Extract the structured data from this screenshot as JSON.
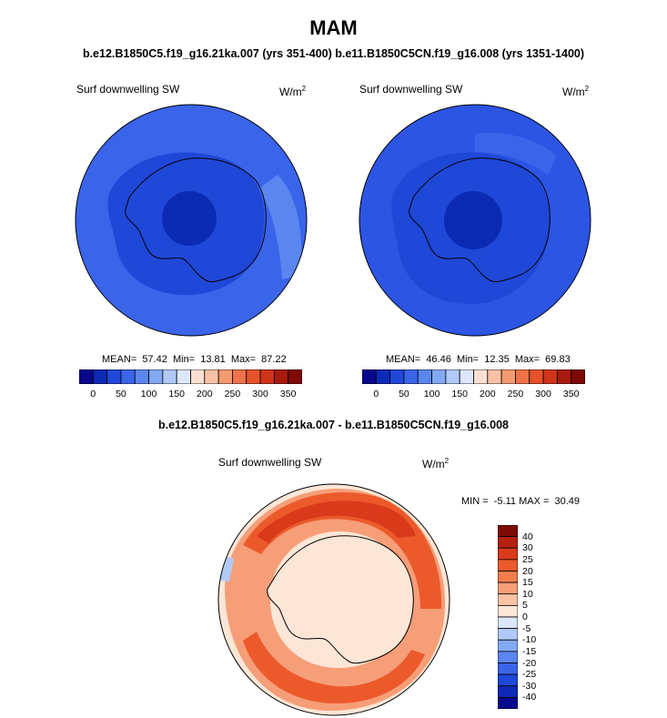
{
  "header": {
    "title": "MAM",
    "subtitle": "b.e12.B1850C5.f19_g16.21ka.007 (yrs 351-400) b.e11.B1850C5CN.f19_g16.008 (yrs 1351-1400)"
  },
  "panels": [
    {
      "label": "Surf downwelling SW",
      "unit_base": "W/m",
      "unit_exp": "2",
      "stats": "MEAN=  57.42  Min=  13.81  Max=  87.22",
      "colorbar_ticks": [
        "0",
        "50",
        "100",
        "150",
        "200",
        "250",
        "300",
        "350"
      ],
      "fill_colors": {
        "outer": "#3a64ea",
        "middle": "#1f48d8",
        "inner": "#0b2bb4",
        "highlight": "#5b86ef"
      }
    },
    {
      "label": "Surf downwelling SW",
      "unit_base": "W/m",
      "unit_exp": "2",
      "stats": "MEAN=  46.46  Min=  12.35  Max=  69.83",
      "colorbar_ticks": [
        "0",
        "50",
        "100",
        "150",
        "200",
        "250",
        "300",
        "350"
      ],
      "fill_colors": {
        "outer": "#2c55e4",
        "middle": "#1f48d8",
        "inner": "#0b2bb4",
        "highlight": "#3a64ea"
      }
    }
  ],
  "diff": {
    "title": "b.e12.B1850C5.f19_g16.21ka.007 - b.e11.B1850C5CN.f19_g16.008",
    "label": "Surf downwelling SW",
    "unit_base": "W/m",
    "unit_exp": "2",
    "stats": "MIN =  -5.11 MAX =  30.49",
    "colorbar_ticks": [
      "40",
      "30",
      "25",
      "20",
      "15",
      "10",
      "5",
      "0",
      "-5",
      "-10",
      "-15",
      "-20",
      "-25",
      "-30",
      "-40"
    ]
  },
  "colors": {
    "abs_scale": [
      "#08088c",
      "#0d29b7",
      "#1f48d8",
      "#3a64ea",
      "#5b86ef",
      "#84a9f3",
      "#b0c9f6",
      "#dce7fb",
      "#fbe0d2",
      "#f8c1a4",
      "#f49a72",
      "#ef7348",
      "#e7522a",
      "#cf3418",
      "#a81a0e",
      "#7d0a05"
    ],
    "diff_scale": [
      "#7d0a05",
      "#b52010",
      "#d93a1a",
      "#ec5a2c",
      "#f27c4c",
      "#f69e78",
      "#fbc3a6",
      "#fde6d6",
      "#dce7fb",
      "#b0c9f6",
      "#84a9f3",
      "#5b86ef",
      "#3a64ea",
      "#1f48d8",
      "#0d29b7",
      "#08088c"
    ]
  }
}
